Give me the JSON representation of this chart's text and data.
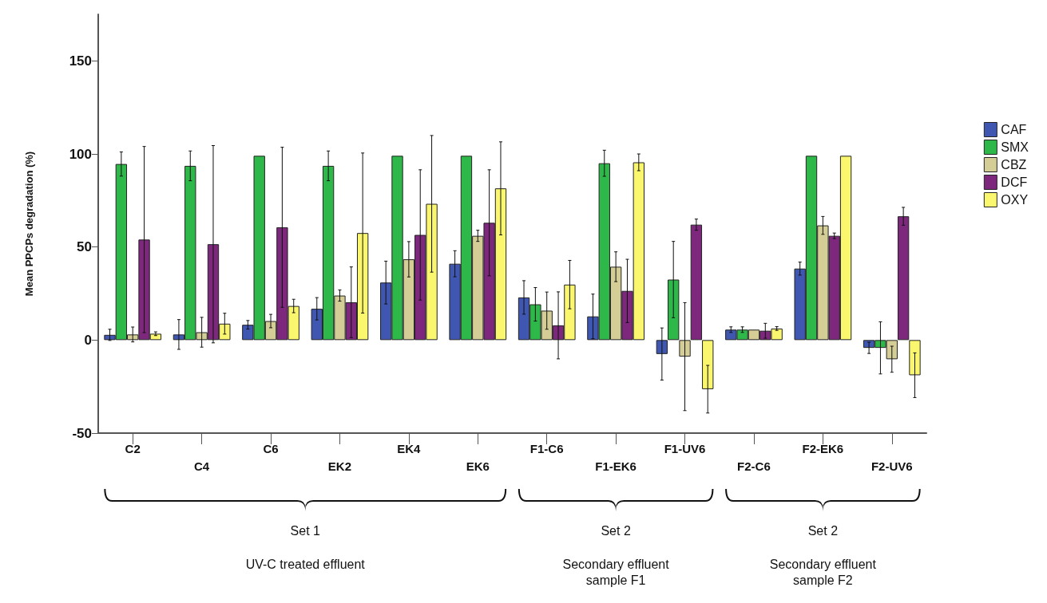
{
  "chart_data": {
    "type": "bar",
    "ylabel": "Mean PPCPs degradation (%)",
    "categories": [
      "C2",
      "C4",
      "C6",
      "EK2",
      "EK4",
      "EK6",
      "F1-C6",
      "F1-EK6",
      "F1-UV6",
      "F2-C6",
      "F2-EK6",
      "F2-UV6"
    ],
    "series": [
      {
        "name": "CAF",
        "color": "#3f57b0",
        "values": [
          2.8,
          3,
          8.2,
          16.8,
          30.9,
          41,
          22.9,
          12.7,
          -7.5,
          5.6,
          38.4,
          -4.2
        ],
        "errors": [
          3,
          8,
          2.3,
          6,
          11.5,
          7,
          9,
          12,
          14,
          1.5,
          3.5,
          3
        ]
      },
      {
        "name": "SMX",
        "color": "#2fb84a",
        "values": [
          94.6,
          93.6,
          99,
          93.6,
          99,
          99,
          19.2,
          95,
          32.5,
          5.6,
          99,
          -4.2
        ],
        "errors": [
          6.5,
          8,
          null,
          8,
          null,
          null,
          9,
          7,
          20.5,
          1.5,
          null,
          14
        ]
      },
      {
        "name": "CBZ",
        "color": "#d4ce96",
        "values": [
          3,
          4.2,
          10.2,
          23.9,
          43.4,
          56,
          15.8,
          39.4,
          -8.9,
          5.6,
          61.6,
          -10.3
        ],
        "errors": [
          4,
          8,
          3.6,
          3,
          9.5,
          3,
          10,
          8,
          29,
          null,
          4.8,
          7
        ]
      },
      {
        "name": "DCF",
        "color": "#7d287c",
        "values": [
          54,
          51.5,
          60.6,
          20.3,
          56.5,
          63,
          7.9,
          26.4,
          62,
          5,
          56,
          66.5
        ],
        "errors": [
          50,
          53,
          43,
          19,
          35,
          28.5,
          18,
          17,
          3,
          4,
          1.5,
          4.8
        ]
      },
      {
        "name": "OXY",
        "color": "#faf76e",
        "values": [
          3.4,
          8.8,
          18.3,
          57.5,
          73.2,
          81.5,
          29.8,
          95.5,
          -26.4,
          6.2,
          99,
          -18.9
        ],
        "errors": [
          1,
          5.6,
          3.6,
          43,
          36.7,
          25,
          13,
          4.5,
          12.8,
          1,
          null,
          12
        ]
      }
    ],
    "ylim": [
      -50,
      175
    ],
    "yticks": [
      -50,
      0,
      50,
      100,
      150
    ],
    "grid": false,
    "legend": "right",
    "annotations": [
      "Set 1",
      "UV-C treated effluent",
      "Set 2",
      "Secondary effluent\nsample F1",
      "Set 2",
      "Secondary effluent\nsample F2"
    ]
  }
}
